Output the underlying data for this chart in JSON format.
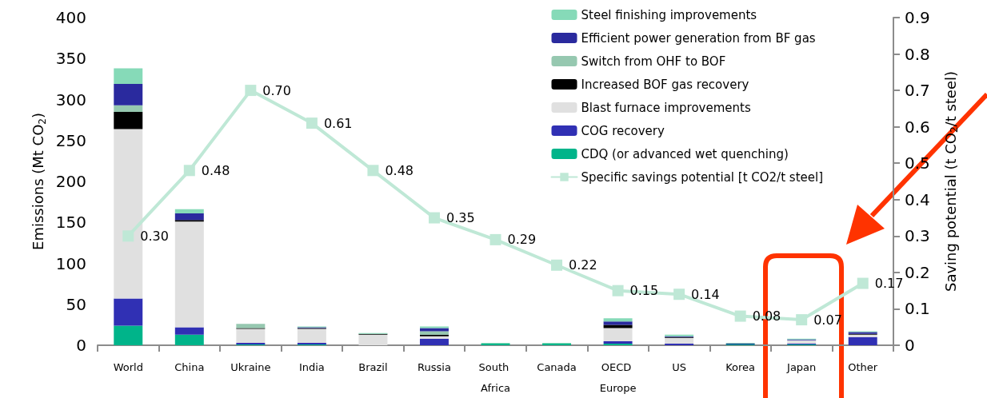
{
  "chart_data": {
    "type": "bar",
    "stacked": true,
    "ylabel": "Emissions (Mt CO$_{2}$)",
    "y2label": "Saving potential (t CO$_{2}$/t steel)",
    "categories": [
      "World",
      "China",
      "Ukraine",
      "India",
      "Brazil",
      "Russia",
      "South Africa",
      "Canada",
      "OECD Europe",
      "US",
      "Korea",
      "Japan",
      "Other"
    ],
    "series": [
      {
        "name": "CDQ (or advanced wet quenching)",
        "color": "#00b48a",
        "values": [
          24,
          13,
          1,
          1,
          0,
          0,
          2,
          2,
          2,
          0,
          1,
          1,
          0
        ]
      },
      {
        "name": "COG recovery",
        "color": "#3030b4",
        "values": [
          33,
          9,
          2,
          2,
          0,
          8,
          0,
          0,
          3,
          2,
          0,
          1,
          10
        ]
      },
      {
        "name": "Blast furnace improvements",
        "color": "#e0e0e0",
        "values": [
          207,
          129,
          17,
          17,
          13,
          3,
          0,
          0,
          16,
          7,
          0,
          4,
          3
        ]
      },
      {
        "name": "Increased BOF gas recovery",
        "color": "#000000",
        "values": [
          21,
          2,
          1,
          1,
          1,
          2,
          0,
          0,
          4,
          1,
          0,
          0,
          1
        ]
      },
      {
        "name": "Switch from OHF to BOF",
        "color": "#96c8b0",
        "values": [
          8,
          0,
          5,
          0,
          0,
          4,
          0,
          0,
          0,
          0,
          0,
          0,
          0
        ]
      },
      {
        "name": "Efficient power generation from BF gas",
        "color": "#2a2a9e",
        "values": [
          26,
          8,
          0,
          1,
          0,
          4,
          0,
          0,
          4,
          1,
          1,
          1,
          2
        ]
      },
      {
        "name": "Steel finishing improvements",
        "color": "#86dab8",
        "values": [
          19,
          5,
          0,
          1,
          1,
          2,
          1,
          1,
          4,
          2,
          1,
          1,
          1
        ]
      },
      {
        "name": "Specific savings potential [t CO2/t steel]",
        "type": "line",
        "axis": "y2",
        "color": "#bfe8d6",
        "values": [
          0.3,
          0.48,
          0.7,
          0.61,
          0.48,
          0.35,
          0.29,
          0.22,
          0.15,
          0.14,
          0.08,
          0.07,
          0.17
        ],
        "value_labels": [
          "0.30",
          "0.48",
          "0.70",
          "0.61",
          "0.48",
          "0.35",
          "0.29",
          "0.22",
          "0.15",
          "0.14",
          "0.08",
          "0.07",
          "0.17"
        ]
      }
    ],
    "ylim": [
      0,
      400
    ],
    "yticks": [
      0,
      50,
      100,
      150,
      200,
      250,
      300,
      350,
      400
    ],
    "y2lim": [
      0,
      0.9
    ],
    "y2ticks": [
      0,
      0.1,
      0.2,
      0.3,
      0.4,
      0.5,
      0.6,
      0.7,
      0.8,
      0.9
    ],
    "marker": "square",
    "grid": false,
    "legend": "top right"
  }
}
